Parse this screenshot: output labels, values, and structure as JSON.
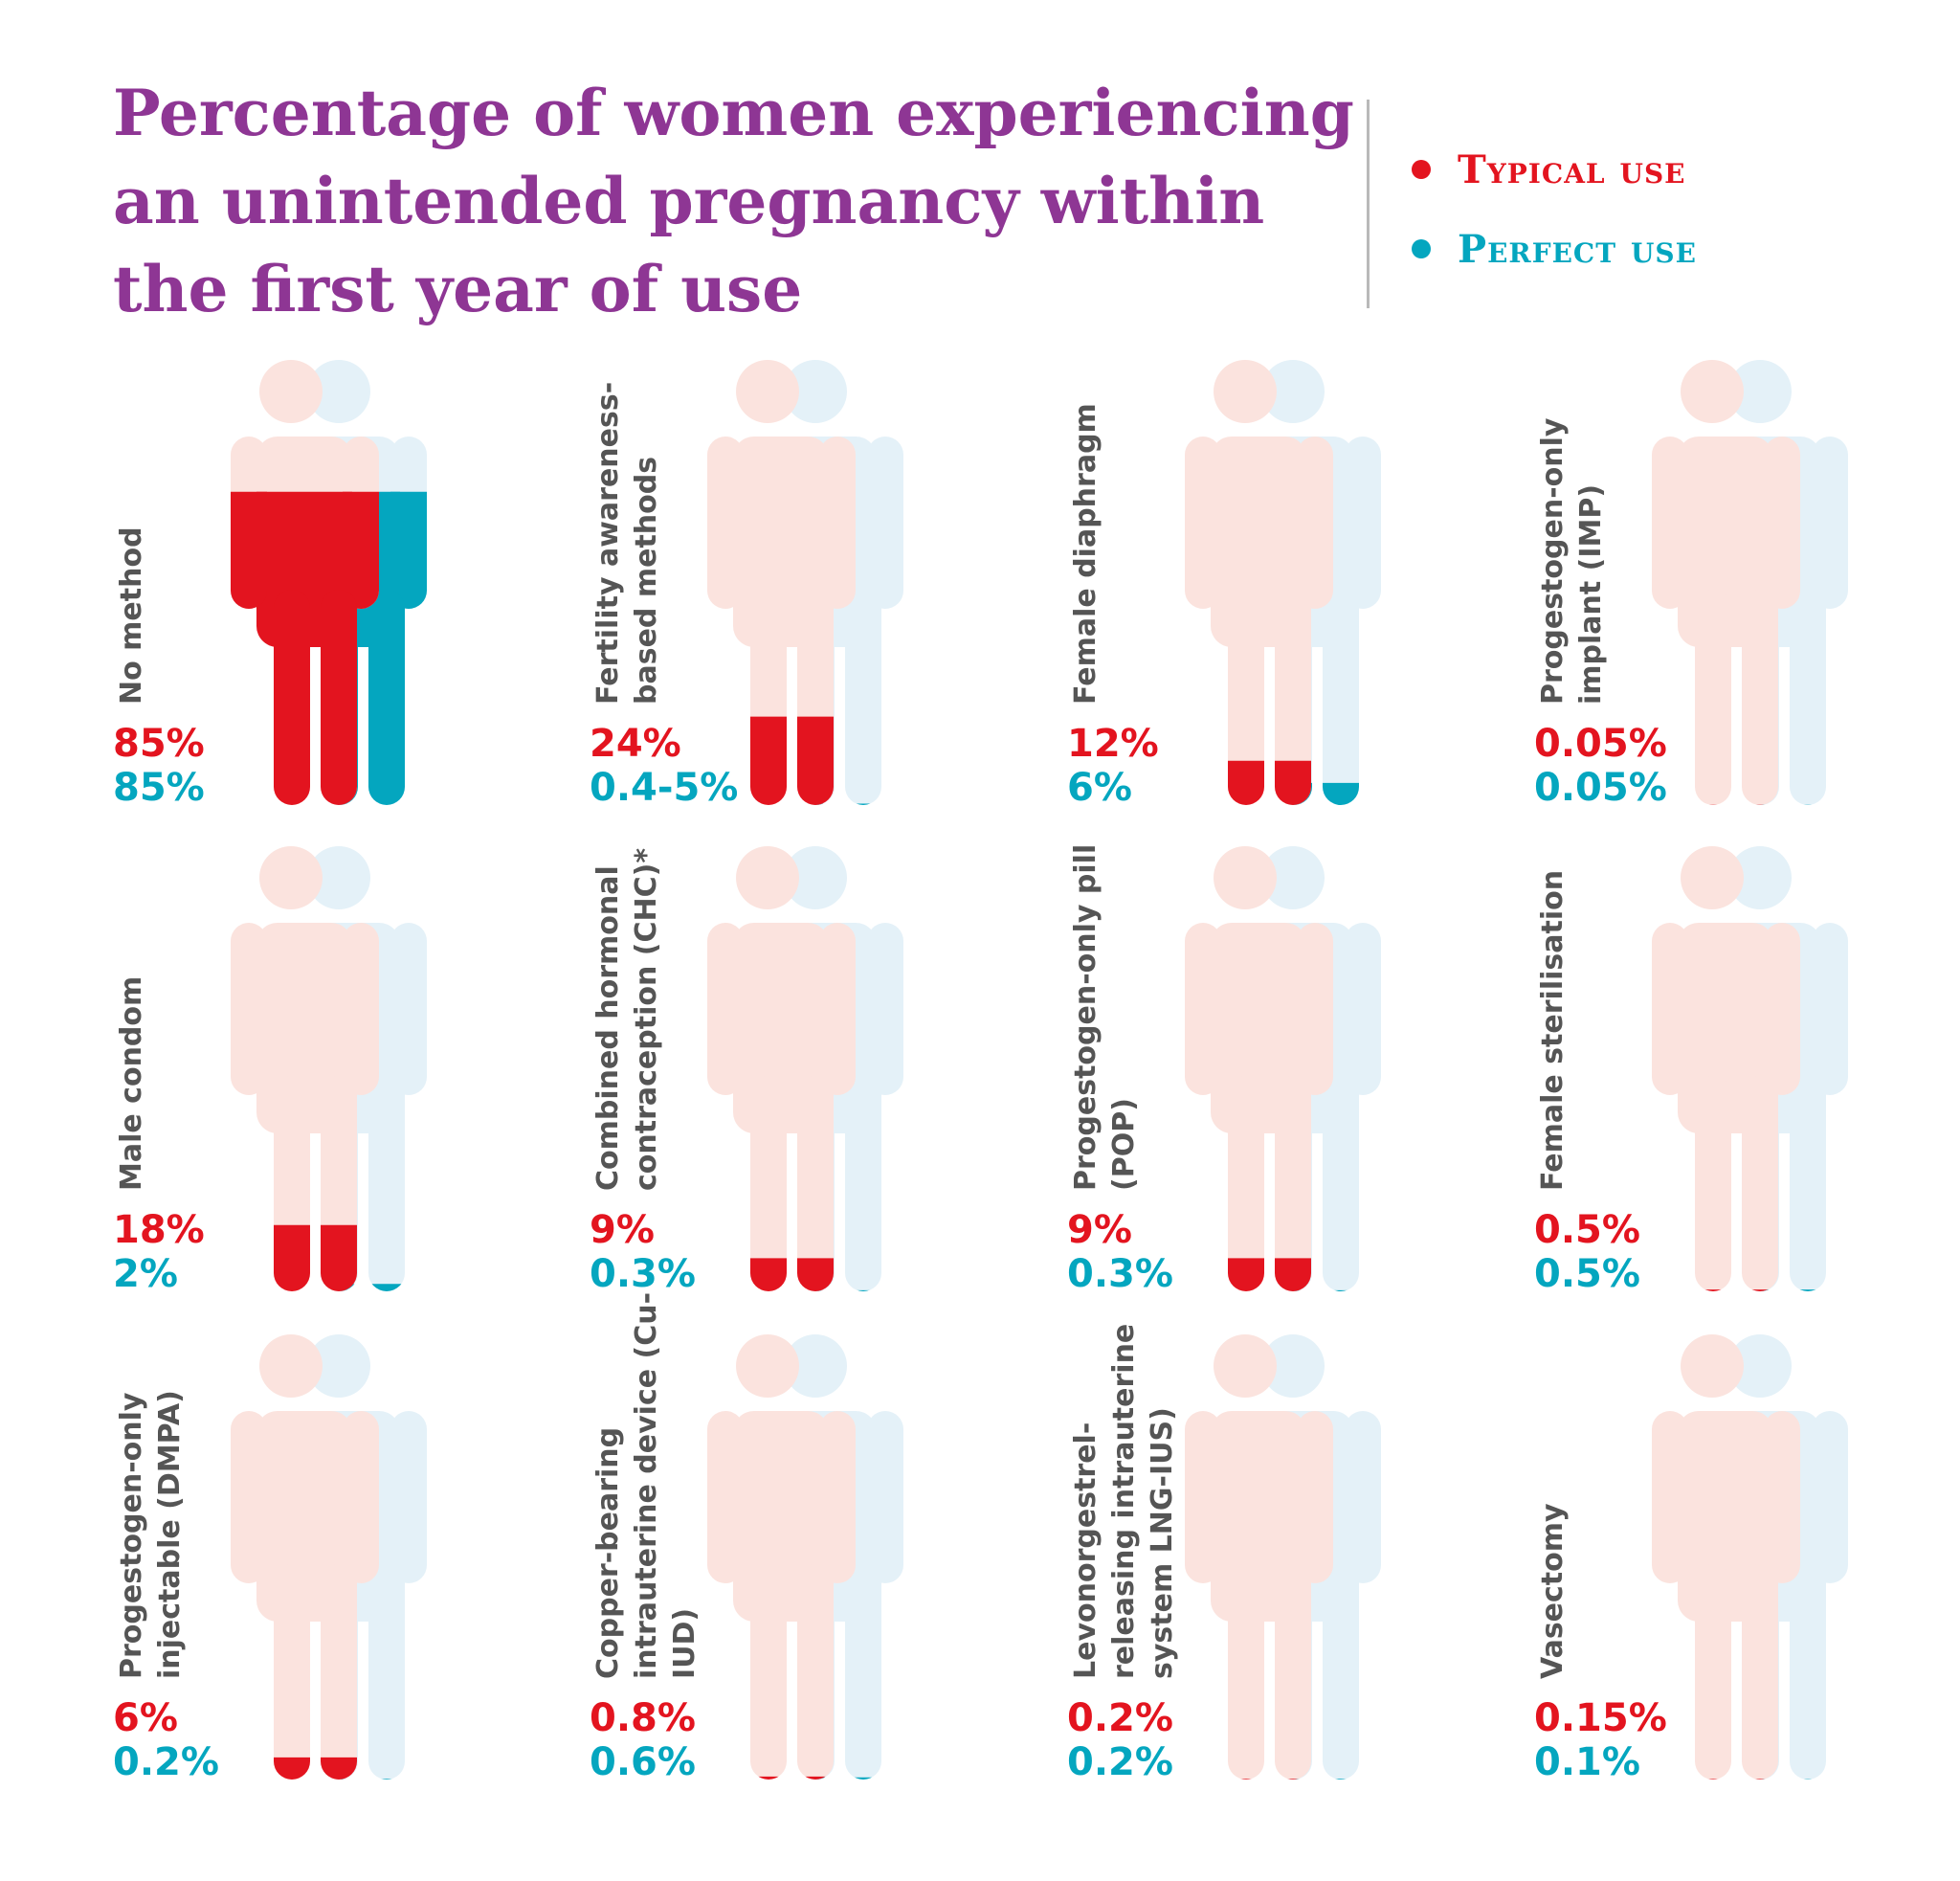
{
  "title_lines": [
    "Percentage of women experiencing",
    "an unintended pregnancy within",
    "the first year of use"
  ],
  "legend": [
    {
      "label": "Typical use",
      "color": "#e3141f"
    },
    {
      "label": "Perfect use",
      "color": "#04a6bf"
    }
  ],
  "colors": {
    "typical": "#e3141f",
    "perfect": "#04a6bf",
    "typical_bg": "#fbe3de",
    "perfect_bg": "#e4f1f8",
    "title": "#8e3694",
    "label_text": "#555555"
  },
  "chart_data": {
    "type": "bar",
    "title": "Percentage of women experiencing an unintended pregnancy within the first year of use",
    "series": [
      {
        "name": "Typical use",
        "values": [
          85,
          24,
          12,
          0.05,
          18,
          9,
          9,
          0.5,
          6,
          0.8,
          0.2,
          0.15
        ]
      },
      {
        "name": "Perfect use",
        "values": [
          85,
          0.4,
          6,
          0.05,
          2,
          0.3,
          0.3,
          0.5,
          0.2,
          0.6,
          0.2,
          0.1
        ]
      }
    ],
    "methods": [
      {
        "label_lines": [
          "No method"
        ],
        "typical": 85,
        "perfect": 85,
        "typical_text": "85%",
        "perfect_text": "85%"
      },
      {
        "label_lines": [
          "Fertility awareness-",
          "based methods"
        ],
        "typical": 24,
        "perfect": 0.4,
        "typical_text": "24%",
        "perfect_text": "0.4-5%"
      },
      {
        "label_lines": [
          "Female diaphragm"
        ],
        "typical": 12,
        "perfect": 6,
        "typical_text": "12%",
        "perfect_text": "6%"
      },
      {
        "label_lines": [
          "Progestogen-only",
          "implant (IMP)"
        ],
        "typical": 0.05,
        "perfect": 0.05,
        "typical_text": "0.05%",
        "perfect_text": "0.05%"
      },
      {
        "label_lines": [
          "Male condom"
        ],
        "typical": 18,
        "perfect": 2,
        "typical_text": "18%",
        "perfect_text": "2%"
      },
      {
        "label_lines": [
          "Combined hormonal",
          "contraception (CHC)*"
        ],
        "typical": 9,
        "perfect": 0.3,
        "typical_text": "9%",
        "perfect_text": "0.3%"
      },
      {
        "label_lines": [
          "Progestogen-only pill",
          "(POP)"
        ],
        "typical": 9,
        "perfect": 0.3,
        "typical_text": "9%",
        "perfect_text": "0.3%"
      },
      {
        "label_lines": [
          "Female sterilisation"
        ],
        "typical": 0.5,
        "perfect": 0.5,
        "typical_text": "0.5%",
        "perfect_text": "0.5%"
      },
      {
        "label_lines": [
          "Progestogen-only",
          "injectable (DMPA)"
        ],
        "typical": 6,
        "perfect": 0.2,
        "typical_text": "6%",
        "perfect_text": "0.2%"
      },
      {
        "label_lines": [
          "Copper-bearing",
          "intrauterine device (Cu-",
          "IUD)"
        ],
        "typical": 0.8,
        "perfect": 0.6,
        "typical_text": "0.8%",
        "perfect_text": "0.6%"
      },
      {
        "label_lines": [
          "Levonorgestrel-",
          "releasing intrauterine",
          "system LNG-IUS)"
        ],
        "typical": 0.2,
        "perfect": 0.2,
        "typical_text": "0.2%",
        "perfect_text": "0.2%"
      },
      {
        "label_lines": [
          "Vasectomy"
        ],
        "typical": 0.15,
        "perfect": 0.1,
        "typical_text": "0.15%",
        "perfect_text": "0.1%"
      }
    ]
  }
}
